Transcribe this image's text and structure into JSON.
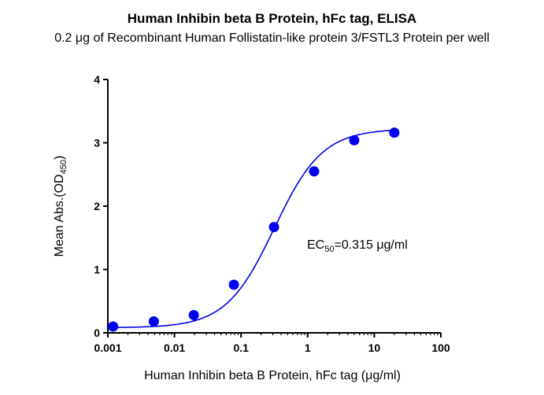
{
  "chart_data": {
    "type": "scatter",
    "title": "Human Inhibin beta B Protein, hFc tag, ELISA",
    "subtitle": "0.2 μg of Recombinant Human Follistatin-like protein 3/FSTL3 Protein per well",
    "xlabel": "Human Inhibin beta B Protein, hFc tag (μg/ml)",
    "ylabel": {
      "prefix": "Mean Abs.(OD",
      "sub": "450",
      "suffix": ")"
    },
    "x_scale": "log",
    "xlim": [
      0.001,
      100
    ],
    "ylim": [
      0,
      4
    ],
    "x_ticks": [
      {
        "value": 0.001,
        "label": "0.001"
      },
      {
        "value": 0.01,
        "label": "0.01"
      },
      {
        "value": 0.1,
        "label": "0.1"
      },
      {
        "value": 1,
        "label": "1"
      },
      {
        "value": 10,
        "label": "10"
      },
      {
        "value": 100,
        "label": "100"
      }
    ],
    "y_ticks": [
      {
        "value": 0,
        "label": "0"
      },
      {
        "value": 1,
        "label": "1"
      },
      {
        "value": 2,
        "label": "2"
      },
      {
        "value": 3,
        "label": "3"
      },
      {
        "value": 4,
        "label": "4"
      }
    ],
    "series": [
      {
        "color": "#0000ee",
        "points": [
          {
            "x": 0.0012,
            "y": 0.1
          },
          {
            "x": 0.0049,
            "y": 0.18
          },
          {
            "x": 0.0195,
            "y": 0.28
          },
          {
            "x": 0.078,
            "y": 0.76
          },
          {
            "x": 0.3125,
            "y": 1.67
          },
          {
            "x": 1.25,
            "y": 2.55
          },
          {
            "x": 5.0,
            "y": 3.04
          },
          {
            "x": 20.0,
            "y": 3.16
          }
        ],
        "fit": {
          "model": "4PL",
          "bottom": 0.08,
          "top": 3.22,
          "ec50": 0.315,
          "hill": 1.2
        }
      }
    ],
    "annotation": {
      "prefix": "EC",
      "sub": "50",
      "suffix": "=0.315 μg/ml"
    },
    "grid": false,
    "legend": "none"
  }
}
